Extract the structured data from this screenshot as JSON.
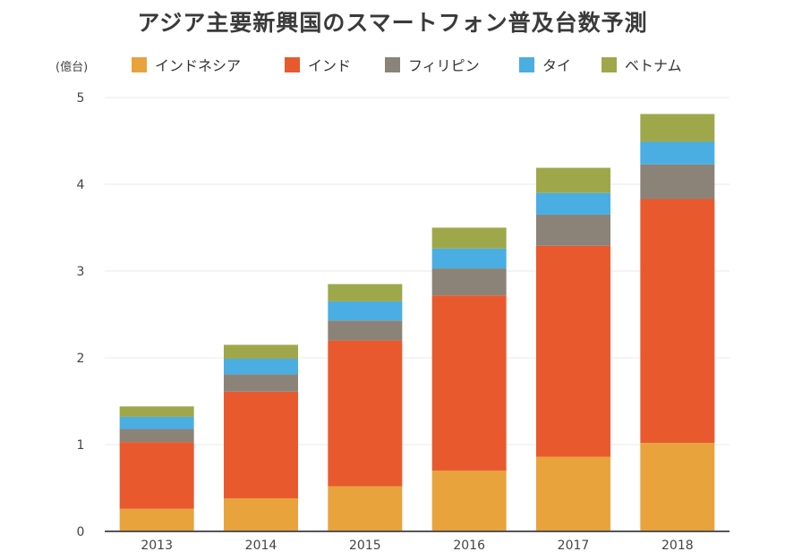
{
  "chart_data": {
    "type": "bar",
    "stacked": true,
    "title": "アジア主要新興国のスマートフォン普及台数予測",
    "ylabel": "(億台)",
    "xlabel": "",
    "categories": [
      "2013",
      "2014",
      "2015",
      "2016",
      "2017",
      "2018"
    ],
    "ylim": [
      0,
      5
    ],
    "yticks": [
      "0",
      "1",
      "2",
      "3",
      "4",
      "5"
    ],
    "grid": true,
    "legend_position": "top",
    "series": [
      {
        "name": "インドネシア",
        "color": "#E8A33D",
        "values": [
          0.26,
          0.38,
          0.52,
          0.7,
          0.86,
          1.02
        ]
      },
      {
        "name": "インド",
        "color": "#E85A2E",
        "values": [
          0.77,
          1.23,
          1.68,
          2.02,
          2.43,
          2.81
        ]
      },
      {
        "name": "フィリピン",
        "color": "#8C8378",
        "values": [
          0.15,
          0.2,
          0.23,
          0.31,
          0.36,
          0.4
        ]
      },
      {
        "name": "タイ",
        "color": "#4AAEE3",
        "values": [
          0.14,
          0.18,
          0.22,
          0.23,
          0.25,
          0.26
        ]
      },
      {
        "name": "ベトナム",
        "color": "#9EA84A",
        "values": [
          0.12,
          0.16,
          0.2,
          0.24,
          0.29,
          0.32
        ]
      }
    ]
  }
}
